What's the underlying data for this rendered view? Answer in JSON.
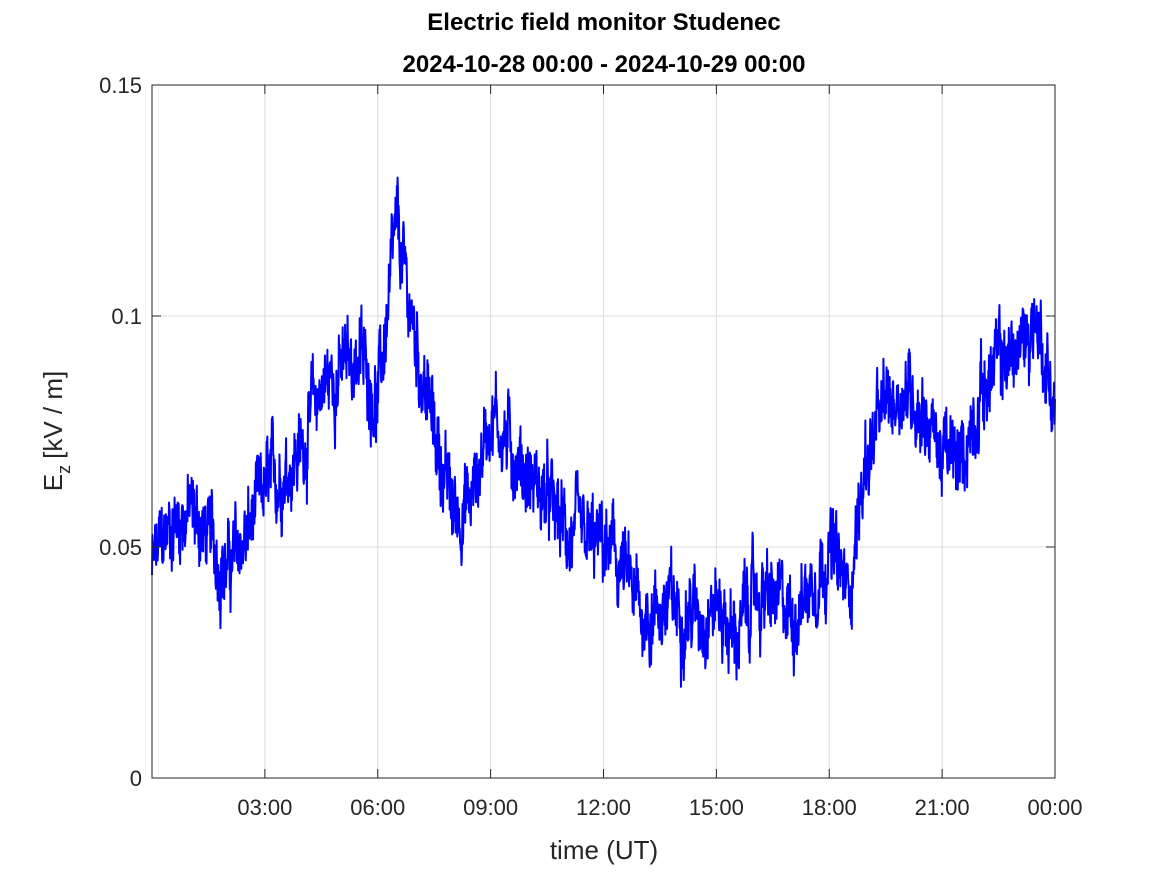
{
  "chart_data": {
    "type": "line",
    "title": "Electric field monitor Studenec",
    "subtitle": "2024-10-28 00:00 - 2024-10-29 00:00",
    "xlabel": "time (UT)",
    "ylabel": {
      "base": "E",
      "subscript": "z",
      "unit": "[kV / m]"
    },
    "xlim": [
      "2024-10-28 00:00",
      "2024-10-29 00:00"
    ],
    "ylim": [
      0,
      0.15
    ],
    "x_ticks": [
      "03:00",
      "06:00",
      "09:00",
      "12:00",
      "15:00",
      "18:00",
      "21:00",
      "00:00"
    ],
    "y_ticks": [
      "0",
      "0.05",
      "0.1",
      "0.15"
    ],
    "grid": true,
    "series": [
      {
        "color": "#0000ff",
        "x": [
          "00:00",
          "00:30",
          "01:00",
          "01:30",
          "02:00",
          "02:30",
          "03:00",
          "03:30",
          "04:00",
          "04:30",
          "05:00",
          "05:30",
          "06:00",
          "06:30",
          "07:00",
          "07:30",
          "08:00",
          "08:30",
          "09:00",
          "09:30",
          "10:00",
          "10:30",
          "11:00",
          "11:30",
          "12:00",
          "12:30",
          "13:00",
          "13:30",
          "14:00",
          "14:30",
          "15:00",
          "15:30",
          "16:00",
          "16:30",
          "17:00",
          "17:30",
          "18:00",
          "18:30",
          "19:00",
          "19:30",
          "20:00",
          "20:30",
          "21:00",
          "21:30",
          "22:00",
          "22:30",
          "23:00",
          "23:30",
          "24:00"
        ],
        "y": [
          0.045,
          0.055,
          0.058,
          0.052,
          0.045,
          0.052,
          0.062,
          0.067,
          0.072,
          0.085,
          0.088,
          0.092,
          0.082,
          0.118,
          0.095,
          0.075,
          0.058,
          0.06,
          0.08,
          0.072,
          0.065,
          0.06,
          0.053,
          0.05,
          0.05,
          0.045,
          0.035,
          0.037,
          0.037,
          0.036,
          0.038,
          0.03,
          0.04,
          0.038,
          0.035,
          0.042,
          0.05,
          0.04,
          0.07,
          0.08,
          0.085,
          0.08,
          0.07,
          0.068,
          0.083,
          0.09,
          0.092,
          0.1,
          0.08
        ],
        "noise_amplitude": 0.008
      }
    ]
  }
}
